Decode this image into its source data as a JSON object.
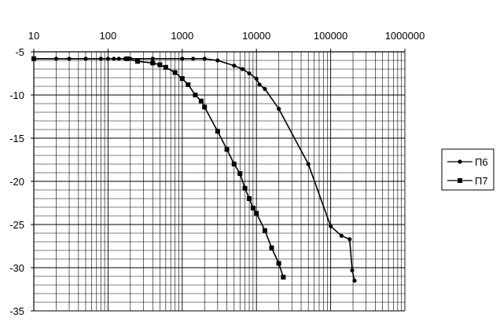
{
  "chart_data": {
    "type": "line",
    "xscale": "log",
    "xlim": [
      10,
      1000000
    ],
    "ylim": [
      -35,
      -5
    ],
    "x_tick_labels": [
      "10",
      "100",
      "1000",
      "10000",
      "100000",
      "1000000"
    ],
    "x_tick_values": [
      10,
      100,
      1000,
      10000,
      100000,
      1000000
    ],
    "y_tick_labels": [
      "-5",
      "-10",
      "-15",
      "-20",
      "-25",
      "-30",
      "-35"
    ],
    "y_tick_values": [
      -5,
      -10,
      -15,
      -20,
      -25,
      -30,
      -35
    ],
    "grid": true,
    "legend_position": "right",
    "series": [
      {
        "name": "П6",
        "marker": "circle",
        "color": "#000000",
        "points": [
          [
            10,
            -5.8
          ],
          [
            20,
            -5.8
          ],
          [
            30,
            -5.8
          ],
          [
            50,
            -5.8
          ],
          [
            80,
            -5.8
          ],
          [
            100,
            -5.8
          ],
          [
            120,
            -5.8
          ],
          [
            140,
            -5.8
          ],
          [
            170,
            -5.8
          ],
          [
            200,
            -5.8
          ],
          [
            400,
            -5.8
          ],
          [
            1000,
            -5.8
          ],
          [
            1400,
            -5.8
          ],
          [
            2000,
            -5.8
          ],
          [
            3000,
            -6.0
          ],
          [
            5000,
            -6.6
          ],
          [
            6500,
            -7.0
          ],
          [
            8000,
            -7.5
          ],
          [
            10000,
            -8.1
          ],
          [
            11000,
            -8.8
          ],
          [
            13000,
            -9.3
          ],
          [
            20000,
            -11.6
          ],
          [
            50000,
            -18.0
          ],
          [
            100000,
            -25.2
          ],
          [
            140000,
            -26.3
          ],
          [
            180000,
            -26.7
          ],
          [
            195000,
            -30.3
          ],
          [
            210000,
            -31.5
          ]
        ]
      },
      {
        "name": "П7",
        "marker": "square",
        "color": "#000000",
        "points": [
          [
            10,
            -5.8
          ],
          [
            180,
            -5.8
          ],
          [
            250,
            -6.1
          ],
          [
            400,
            -6.3
          ],
          [
            500,
            -6.5
          ],
          [
            600,
            -6.8
          ],
          [
            800,
            -7.4
          ],
          [
            1000,
            -8.1
          ],
          [
            1200,
            -8.8
          ],
          [
            1500,
            -10.0
          ],
          [
            1800,
            -10.7
          ],
          [
            2000,
            -11.4
          ],
          [
            3000,
            -14.2
          ],
          [
            4000,
            -16.3
          ],
          [
            5000,
            -18.0
          ],
          [
            6000,
            -19.1
          ],
          [
            7000,
            -20.8
          ],
          [
            8000,
            -22.0
          ],
          [
            9000,
            -23.1
          ],
          [
            10000,
            -23.7
          ],
          [
            13000,
            -25.7
          ],
          [
            16000,
            -27.7
          ],
          [
            20000,
            -29.5
          ],
          [
            23000,
            -31.1
          ]
        ]
      }
    ]
  }
}
